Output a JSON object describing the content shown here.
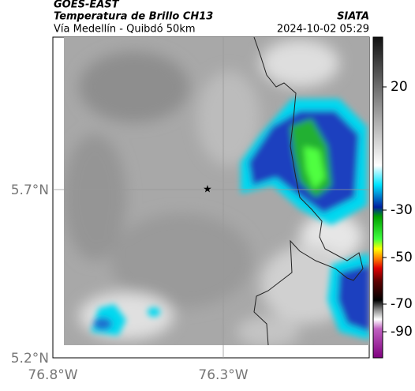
{
  "header": {
    "source": "GOES-EAST",
    "title": "Temperatura de Brillo CH13",
    "agency": "SIATA",
    "subtitle": "Vía Medellín - Quibdó 50km",
    "timestamp": "2024-10-02 05:29"
  },
  "map": {
    "lat_labels": [
      "5.7°N",
      "5.2°N"
    ],
    "lon_labels": [
      "76.8°W",
      "76.3°W"
    ]
  },
  "colorbar": {
    "tick_labels": [
      "20",
      "-30",
      "-50",
      "-70",
      "-90"
    ]
  }
}
